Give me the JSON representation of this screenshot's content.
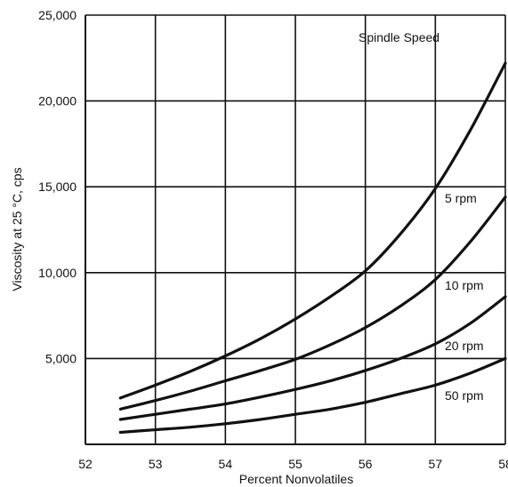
{
  "chart_data": {
    "type": "line",
    "title": "",
    "xlabel": "Percent Nonvolatiles",
    "ylabel": "Viscosity at 25 °C, cps",
    "xlim": [
      52,
      58
    ],
    "ylim": [
      0,
      25000
    ],
    "xticks": [
      "52",
      "53",
      "54",
      "55",
      "56",
      "57",
      "58"
    ],
    "yticks": [
      "5,000",
      "10,000",
      "15,000",
      "20,000",
      "25,000"
    ],
    "grid": true,
    "legend_title": "Spindle Speed",
    "series": [
      {
        "name": "5 rpm",
        "x": [
          52.5,
          53,
          53.5,
          54,
          54.5,
          55,
          55.5,
          56,
          56.5,
          57,
          57.5,
          58
        ],
        "y": [
          2700,
          3450,
          4250,
          5150,
          6150,
          7300,
          8600,
          10100,
          12250,
          14900,
          18300,
          22200
        ]
      },
      {
        "name": "10 rpm",
        "x": [
          52.5,
          53,
          53.5,
          54,
          54.5,
          55,
          55.5,
          56,
          56.5,
          57,
          57.5,
          58
        ],
        "y": [
          2050,
          2550,
          3100,
          3700,
          4300,
          4950,
          5800,
          6800,
          8050,
          9600,
          11800,
          14400
        ]
      },
      {
        "name": "20 rpm",
        "x": [
          52.5,
          53,
          53.5,
          54,
          54.5,
          55,
          55.5,
          56,
          56.5,
          57,
          57.5,
          58
        ],
        "y": [
          1450,
          1750,
          2050,
          2350,
          2750,
          3200,
          3700,
          4300,
          5000,
          5850,
          7050,
          8600
        ]
      },
      {
        "name": "50 rpm",
        "x": [
          52.5,
          53,
          53.5,
          54,
          54.5,
          55,
          55.5,
          56,
          56.5,
          57,
          57.5,
          58
        ],
        "y": [
          700,
          850,
          1000,
          1200,
          1450,
          1750,
          2050,
          2450,
          2950,
          3450,
          4150,
          5000
        ]
      }
    ]
  }
}
